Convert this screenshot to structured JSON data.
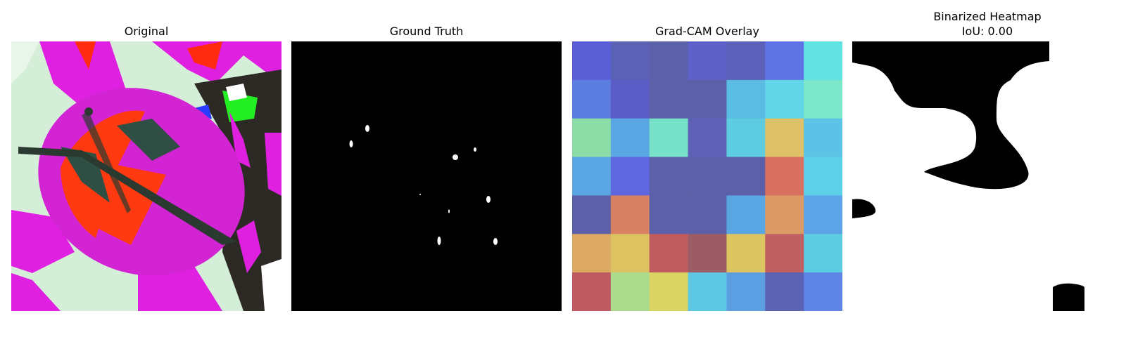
{
  "panels": [
    {
      "title": "Original"
    },
    {
      "title": "Ground Truth"
    },
    {
      "title": "Grad-CAM Overlay"
    },
    {
      "title_line1": "Binarized Heatmap",
      "title_line2": "IoU: 0.00"
    }
  ],
  "chart_data": [
    {
      "type": "image",
      "title": "Original",
      "content": "leaf photo with false-color rendering"
    },
    {
      "type": "image",
      "title": "Ground Truth",
      "content": "binary mask: black background with small white spots"
    },
    {
      "type": "heatmap",
      "title": "Grad-CAM Overlay",
      "rows": 7,
      "cols": 7,
      "cell_colors": [
        [
          "#5a5fd6",
          "#5b61b4",
          "#5c60a8",
          "#5e62c8",
          "#5c60b8",
          "#5e74e4",
          "#62e2e0"
        ],
        [
          "#5b7ee0",
          "#5c5cc6",
          "#5c60a8",
          "#5c60a8",
          "#5abce2",
          "#60d6e6",
          "#7ce6c8"
        ],
        [
          "#8cdca8",
          "#5aa6e2",
          "#76e0c8",
          "#5e60b8",
          "#5ecce0",
          "#dec068",
          "#5cc2e6"
        ],
        [
          "#5aa6e2",
          "#5e66e0",
          "#5c60a8",
          "#5c60a8",
          "#5c60a8",
          "#da7060",
          "#5cd0e6"
        ],
        [
          "#5c60a8",
          "#d88062",
          "#5c60a8",
          "#5c60a8",
          "#5aa6e2",
          "#dc9a64",
          "#5ca4e6"
        ],
        [
          "#dca862",
          "#dcc260",
          "#c05c5e",
          "#9c5c66",
          "#dcc460",
          "#c06062",
          "#5ccce2"
        ],
        [
          "#c05a62",
          "#aadc8c",
          "#dad464",
          "#5cc8e2",
          "#5c9ee2",
          "#5c62b4",
          "#5e84e6"
        ]
      ]
    },
    {
      "type": "image",
      "title": "Binarized Heatmap",
      "subtitle": "IoU: 0.00",
      "content": "binary mask of thresholded heatmap"
    }
  ]
}
